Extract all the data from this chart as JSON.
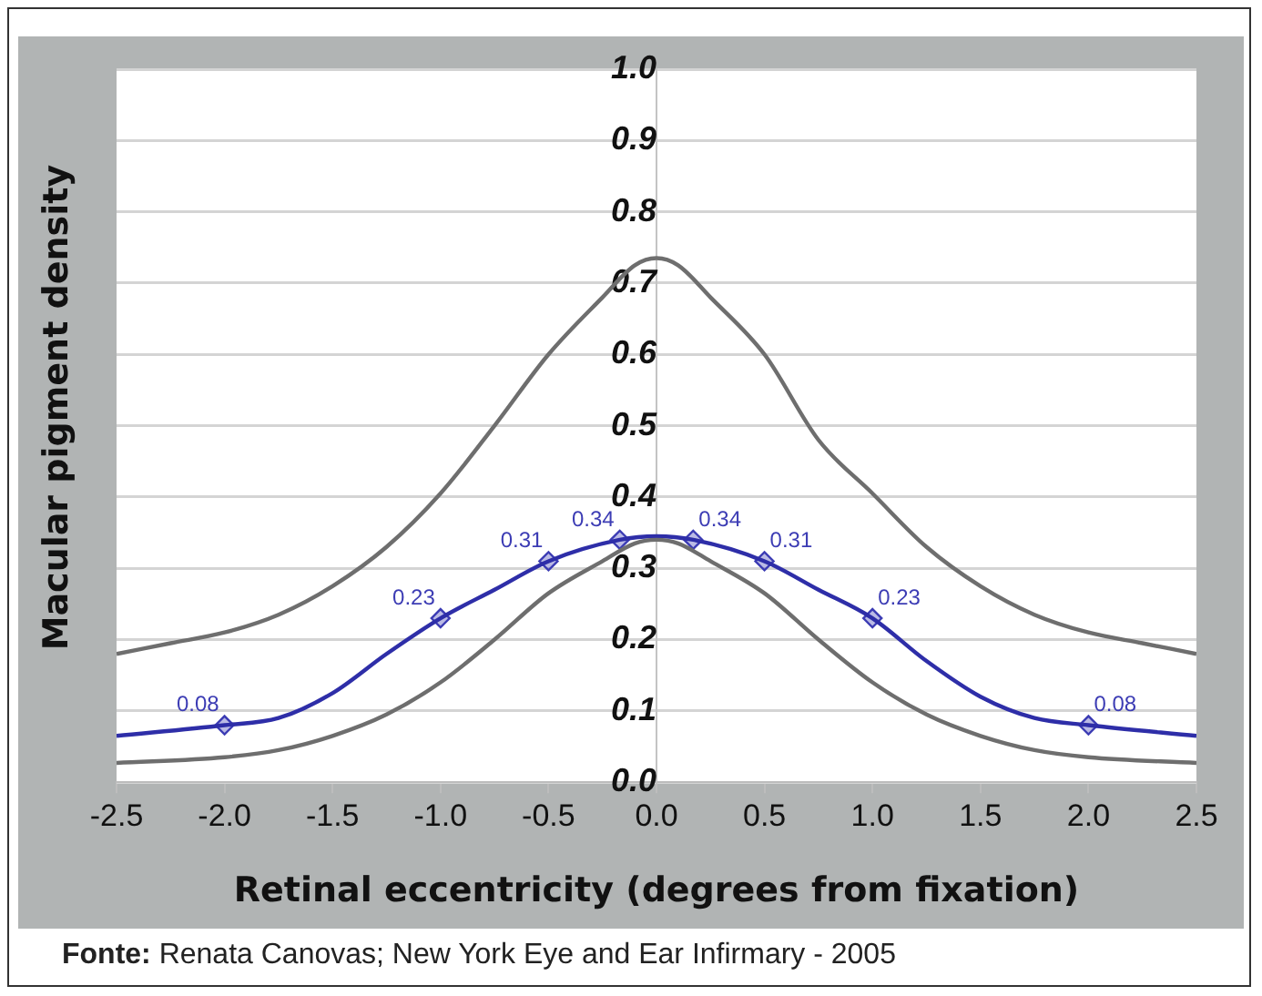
{
  "chart_data": {
    "type": "line",
    "xlabel": "Retinal eccentricity (degrees from fixation)",
    "ylabel": "Macular pigment density",
    "annotations": [
      "Fonte: Renata Canovas; New York Eye and Ear Infirmary - 2005"
    ],
    "xlim": [
      -2.5,
      2.5
    ],
    "xticks": [
      {
        "value": -2.5,
        "label": "-2.5"
      },
      {
        "value": -2,
        "label": "-2.0"
      },
      {
        "value": -1.5,
        "label": "-1.5"
      },
      {
        "value": -1,
        "label": "-1.0"
      },
      {
        "value": -0.5,
        "label": "-0.5"
      },
      {
        "value": 0,
        "label": "0.0"
      },
      {
        "value": 0.5,
        "label": "0.5"
      },
      {
        "value": 1,
        "label": "1.0"
      },
      {
        "value": 1.5,
        "label": "1.5"
      },
      {
        "value": 2,
        "label": "2.0"
      },
      {
        "value": 2.5,
        "label": "2.5"
      }
    ],
    "ylim": [
      0,
      1
    ],
    "yticks": [
      {
        "value": 0,
        "label": "0.0"
      },
      0.1,
      0.2,
      0.3,
      0.4,
      0.5,
      0.6,
      0.7,
      0.8,
      0.9,
      {
        "value": 1,
        "label": "1.0"
      }
    ],
    "grid": "y",
    "legend": false,
    "series": [
      {
        "color": "#6e6e6e",
        "marker": "none",
        "x": [
          -2.5,
          -2.25,
          -2,
          -1.75,
          -1.5,
          -1.25,
          -1,
          -0.75,
          -0.5,
          -0.25,
          -0.1,
          0,
          0.1,
          0.25,
          0.5,
          0.75,
          1,
          1.25,
          1.5,
          1.75,
          2,
          2.25,
          2.5
        ],
        "values": [
          0.18,
          0.195,
          0.21,
          0.235,
          0.275,
          0.33,
          0.405,
          0.5,
          0.6,
          0.68,
          0.725,
          0.735,
          0.725,
          0.68,
          0.6,
          0.48,
          0.405,
          0.33,
          0.275,
          0.235,
          0.21,
          0.195,
          0.18
        ]
      },
      {
        "color": "#6e6e6e",
        "marker": "none",
        "x": [
          -2.5,
          -2,
          -1.75,
          -1.5,
          -1.25,
          -1,
          -0.75,
          -0.5,
          -0.25,
          -0.1,
          0,
          0.1,
          0.25,
          0.5,
          0.75,
          1,
          1.25,
          1.5,
          1.75,
          2,
          2.5
        ],
        "values": [
          0.027,
          0.035,
          0.045,
          0.065,
          0.095,
          0.14,
          0.2,
          0.265,
          0.31,
          0.335,
          0.34,
          0.335,
          0.31,
          0.265,
          0.2,
          0.14,
          0.095,
          0.065,
          0.045,
          0.035,
          0.027
        ]
      },
      {
        "color": "#2e2ea8",
        "marker": "none",
        "x": [
          -2.5,
          -2,
          -1.75,
          -1.5,
          -1.25,
          -1,
          -0.75,
          -0.5,
          -0.17,
          0,
          0.17,
          0.5,
          0.75,
          1,
          1.25,
          1.5,
          1.75,
          2,
          2.5
        ],
        "values": [
          0.065,
          0.08,
          0.09,
          0.125,
          0.18,
          0.23,
          0.27,
          0.31,
          0.34,
          0.345,
          0.34,
          0.31,
          0.27,
          0.23,
          0.17,
          0.12,
          0.09,
          0.08,
          0.065
        ]
      },
      {
        "type": "scatter",
        "color": "#3c3cb4",
        "marker": "diamond",
        "x": [
          -2,
          -1,
          -0.5,
          -0.17,
          0.17,
          0.5,
          1,
          2
        ],
        "values": [
          0.08,
          0.23,
          0.31,
          0.34,
          0.34,
          0.31,
          0.23,
          0.08
        ],
        "value_labels": [
          "0.08",
          "0.23",
          "0.31",
          "0.34",
          "0.34",
          "0.31",
          "0.23",
          "0.08"
        ]
      }
    ]
  }
}
